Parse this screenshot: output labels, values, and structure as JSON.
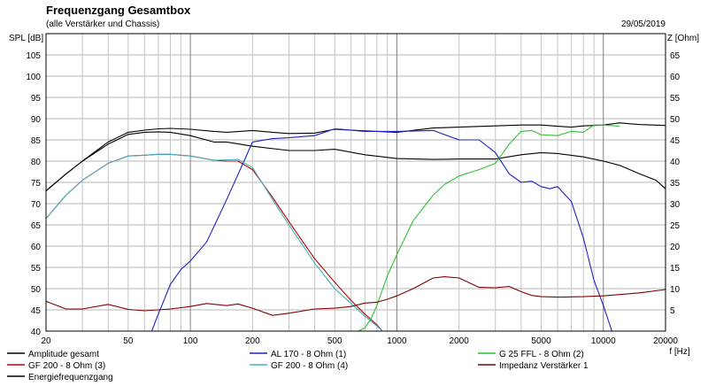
{
  "chart_data": {
    "type": "line",
    "title": "Frequenzgang Gesamtbox",
    "subtitle": "(alle Verstärker und Chassis)",
    "date": "29/05/2019",
    "ylabel_left": "SPL [dB]",
    "ylabel_right": "Z [Ohm]",
    "xlabel": "f [Hz]",
    "x_scale": "log",
    "xlim": [
      20,
      20000
    ],
    "ylim_left": [
      40,
      110
    ],
    "ylim_right": [
      0,
      70
    ],
    "x_ticks": [
      {
        "value": 20,
        "label": "20"
      },
      {
        "value": 50,
        "label": "50"
      },
      {
        "value": 100,
        "label": "100"
      },
      {
        "value": 200,
        "label": "200"
      },
      {
        "value": 500,
        "label": "500"
      },
      {
        "value": 1000,
        "label": "1000"
      },
      {
        "value": 2000,
        "label": "2000"
      },
      {
        "value": 5000,
        "label": "5000"
      },
      {
        "value": 10000,
        "label": "10000"
      },
      {
        "value": 20000,
        "label": "20000"
      }
    ],
    "y_ticks_left": [
      40,
      45,
      50,
      55,
      60,
      65,
      70,
      75,
      80,
      85,
      90,
      95,
      100,
      105
    ],
    "y_ticks_right": [
      5,
      10,
      15,
      20,
      25,
      30,
      35,
      40,
      45,
      50,
      55,
      60,
      65
    ],
    "grid": true,
    "legend_position": "bottom",
    "series": [
      {
        "name": "Amplitude gesamt",
        "color": "#000000",
        "axis": "left",
        "x": [
          20,
          25,
          30,
          40,
          50,
          60,
          70,
          80,
          100,
          130,
          150,
          200,
          250,
          300,
          400,
          500,
          600,
          800,
          1000,
          1500,
          2000,
          3000,
          4000,
          5000,
          6000,
          7000,
          8000,
          10000,
          12000,
          15000,
          20000
        ],
        "y": [
          73,
          77,
          80,
          84.5,
          86.8,
          87.3,
          87.6,
          87.7,
          87.5,
          87,
          86.8,
          87.2,
          86.8,
          86.5,
          86.6,
          87.5,
          87.3,
          87,
          86.8,
          87.8,
          88,
          88.3,
          88.5,
          88.5,
          88.2,
          88,
          88.3,
          88.5,
          89,
          88.6,
          88.4
        ]
      },
      {
        "name": "GF 200 - 8 Ohm (3)",
        "color": "#c00000",
        "axis": "left",
        "x": [
          20,
          25,
          30,
          40,
          50,
          60,
          70,
          80,
          100,
          130,
          150,
          170,
          200,
          250,
          300,
          400,
          500,
          600,
          700,
          800,
          850
        ],
        "y": [
          66.5,
          72,
          75.5,
          79.5,
          81.2,
          81.4,
          81.6,
          81.6,
          81.2,
          80.2,
          80,
          80,
          78,
          71.5,
          65.8,
          57,
          51.5,
          47.2,
          44,
          41.5,
          40
        ]
      },
      {
        "name": "Energiefrequenzgang",
        "color": "#000000",
        "axis": "left",
        "x": [
          20,
          25,
          30,
          40,
          50,
          60,
          70,
          80,
          100,
          130,
          150,
          200,
          300,
          400,
          500,
          700,
          1000,
          1500,
          2000,
          3000,
          4000,
          5000,
          6000,
          8000,
          10000,
          12000,
          15000,
          18000,
          20000
        ],
        "y": [
          73,
          77,
          80,
          84,
          86.3,
          86.8,
          86.9,
          86.8,
          86,
          84.5,
          84.5,
          83.5,
          82.5,
          82.5,
          82.8,
          81.5,
          80.6,
          80.4,
          80.5,
          80.5,
          81.5,
          82,
          81.8,
          81,
          80,
          79,
          77,
          75.5,
          73.5
        ]
      },
      {
        "name": "AL 170 - 8 Ohm (1)",
        "color": "#2020c0",
        "axis": "left",
        "x": [
          65,
          70,
          80,
          90,
          100,
          120,
          150,
          180,
          200,
          250,
          300,
          400,
          500,
          700,
          1000,
          1500,
          2000,
          2500,
          3000,
          3500,
          4000,
          4500,
          5000,
          5500,
          6000,
          7000,
          8000,
          9000,
          10000,
          11000
        ],
        "y": [
          40,
          44,
          51,
          54.5,
          56.5,
          61,
          71,
          79.5,
          84.5,
          85.3,
          85.5,
          86,
          87.6,
          87,
          87,
          87.2,
          85,
          85,
          82,
          77,
          75,
          75.3,
          74,
          73.5,
          74,
          70.5,
          62,
          52,
          46,
          40
        ]
      },
      {
        "name": "GF 200 - 8 Ohm (4)",
        "color": "#40b0c0",
        "axis": "left",
        "x": [
          20,
          25,
          30,
          40,
          50,
          60,
          70,
          80,
          100,
          130,
          150,
          170,
          200,
          250,
          300,
          400,
          500,
          600,
          700,
          800,
          850
        ],
        "y": [
          66.5,
          72,
          75.5,
          79.5,
          81.2,
          81.4,
          81.6,
          81.6,
          81.2,
          80.2,
          80.3,
          80.4,
          78.5,
          71,
          65,
          56,
          50,
          46.5,
          43.5,
          41.2,
          40
        ]
      },
      {
        "name": "G 25 FFL - 8 Ohm (2)",
        "color": "#30c030",
        "axis": "left",
        "x": [
          650,
          700,
          750,
          800,
          900,
          1000,
          1200,
          1500,
          1700,
          2000,
          2500,
          3000,
          3500,
          4000,
          4500,
          5000,
          6000,
          7000,
          8000,
          9000,
          10000,
          12000
        ],
        "y": [
          40,
          40.8,
          43,
          46,
          53,
          58,
          66,
          72,
          74.5,
          76.5,
          78,
          79.5,
          84,
          87,
          87.2,
          86.2,
          86,
          87,
          86.8,
          88.5,
          88.5,
          88.2
        ]
      },
      {
        "name": "Impedanz Verstärker 1",
        "color": "#800000",
        "axis": "right",
        "x": [
          20,
          25,
          30,
          40,
          50,
          60,
          70,
          80,
          100,
          120,
          150,
          170,
          200,
          250,
          300,
          400,
          500,
          600,
          700,
          800,
          900,
          1000,
          1200,
          1500,
          1700,
          2000,
          2500,
          3000,
          3500,
          4000,
          4500,
          5000,
          6000,
          8000,
          10000,
          12000,
          15000,
          20000
        ],
        "y": [
          7,
          5.2,
          5.2,
          6.3,
          5.1,
          4.8,
          5.0,
          5.2,
          5.8,
          6.5,
          6.0,
          6.4,
          5.4,
          3.7,
          4.2,
          5.2,
          5.4,
          5.8,
          6.6,
          6.8,
          7.5,
          8.3,
          10,
          12.5,
          12.8,
          12.5,
          10.3,
          10.2,
          10.5,
          9.3,
          8.4,
          8.1,
          8.0,
          8.1,
          8.3,
          8.6,
          9.0,
          9.8
        ]
      }
    ]
  }
}
